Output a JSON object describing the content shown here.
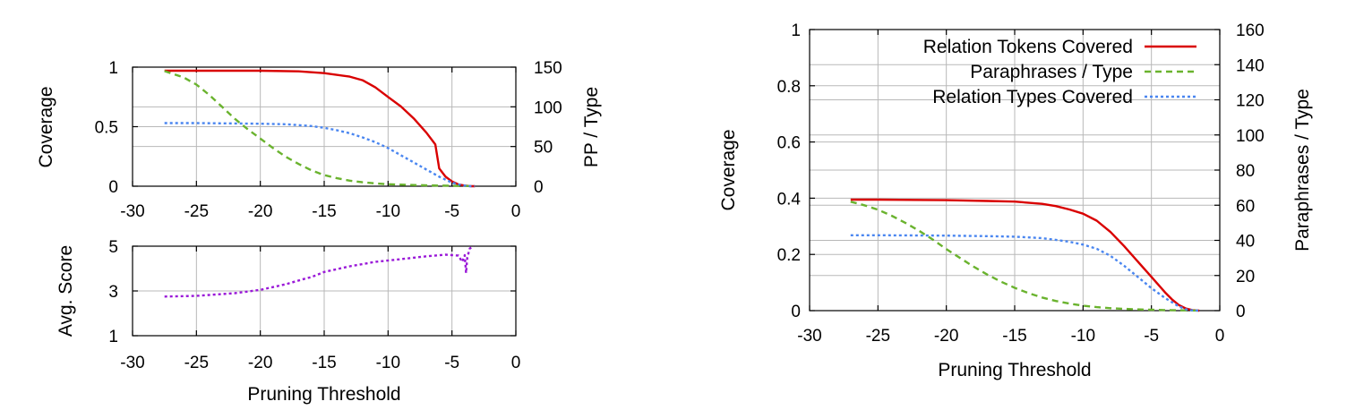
{
  "chart_data": [
    {
      "id": "coverage-top",
      "type": "line",
      "title": "",
      "xlabel": "",
      "ylabel": "Coverage",
      "y2label": "PP / Type",
      "xlim": [
        -30,
        0
      ],
      "ylim": [
        0,
        1
      ],
      "y2lim": [
        0,
        150
      ],
      "xticks": [
        -30,
        -25,
        -20,
        -15,
        -10,
        -5,
        0
      ],
      "xtick_labels": [
        "-30",
        "-25",
        "-20",
        "-15",
        "-10",
        "-5",
        "0"
      ],
      "yticks": [
        0,
        0.5,
        1
      ],
      "ytick_labels": [
        "0",
        "0.5",
        "1"
      ],
      "y2ticks": [
        0,
        50,
        100,
        150
      ],
      "y2tick_labels": [
        "0",
        "50",
        "100",
        "150"
      ],
      "grid": true,
      "series": [
        {
          "color": "#d90000",
          "dash": "solid",
          "axis": "y",
          "x": [
            -27.5,
            -25,
            -20,
            -17,
            -15,
            -13,
            -12,
            -11,
            -10,
            -9,
            -8,
            -7,
            -6.3,
            -6.0,
            -5.5,
            -5,
            -4.5,
            -4,
            -3.5,
            -3.2
          ],
          "y": [
            0.97,
            0.97,
            0.97,
            0.965,
            0.95,
            0.92,
            0.89,
            0.83,
            0.75,
            0.67,
            0.57,
            0.45,
            0.35,
            0.15,
            0.08,
            0.04,
            0.015,
            0.005,
            0.0,
            0.0
          ]
        },
        {
          "color": "#6ab32e",
          "dash": "dashed",
          "axis": "y2",
          "x": [
            -27.5,
            -26,
            -25,
            -24,
            -23,
            -22,
            -21,
            -20,
            -19,
            -18,
            -17,
            -16,
            -15,
            -14,
            -13,
            -12,
            -11,
            -10,
            -8,
            -6,
            -4,
            -3.2
          ],
          "y": [
            145,
            137,
            128,
            115,
            100,
            85,
            72,
            60,
            48,
            37,
            28,
            20,
            14,
            10,
            7,
            5,
            3.5,
            2.5,
            1.5,
            0.8,
            0.3,
            0.0
          ]
        },
        {
          "color": "#4a86f0",
          "dash": "dotted",
          "axis": "y",
          "x": [
            -27.5,
            -25,
            -20,
            -18,
            -16,
            -15,
            -14,
            -13,
            -12,
            -11,
            -10,
            -9,
            -8,
            -7,
            -6,
            -5,
            -4.5,
            -4,
            -3.5,
            -3.2
          ],
          "y": [
            0.53,
            0.53,
            0.525,
            0.52,
            0.505,
            0.49,
            0.47,
            0.445,
            0.41,
            0.37,
            0.32,
            0.26,
            0.2,
            0.14,
            0.08,
            0.03,
            0.015,
            0.005,
            0.0,
            0.0
          ]
        }
      ]
    },
    {
      "id": "score-bottom",
      "type": "line",
      "title": "",
      "xlabel": "Pruning Threshold",
      "ylabel": "Avg. Score",
      "xlim": [
        -30,
        0
      ],
      "ylim": [
        1,
        5
      ],
      "xticks": [
        -30,
        -25,
        -20,
        -15,
        -10,
        -5,
        0
      ],
      "xtick_labels": [
        "-30",
        "-25",
        "-20",
        "-15",
        "-10",
        "-5",
        "0"
      ],
      "yticks": [
        1,
        3,
        5
      ],
      "ytick_labels": [
        "1",
        "3",
        "5"
      ],
      "grid": true,
      "series": [
        {
          "color": "#9a19d8",
          "dash": "dotted",
          "x": [
            -27.5,
            -25,
            -22,
            -20,
            -18,
            -16.5,
            -16,
            -15,
            -13,
            -11,
            -9,
            -7,
            -5.5,
            -5,
            -4.5,
            -4.2,
            -4.0,
            -3.9,
            -3.8,
            -3.6,
            -3.3
          ],
          "y": [
            2.75,
            2.78,
            2.9,
            3.05,
            3.3,
            3.55,
            3.62,
            3.85,
            4.1,
            4.3,
            4.42,
            4.55,
            4.62,
            4.6,
            4.58,
            4.3,
            4.6,
            3.8,
            4.5,
            4.9,
            5.0
          ]
        }
      ]
    },
    {
      "id": "coverage-right",
      "type": "line",
      "title": "",
      "xlabel": "Pruning Threshold",
      "ylabel": "Coverage",
      "y2label": "Paraphrases / Type",
      "xlim": [
        -30,
        0
      ],
      "ylim": [
        0,
        1
      ],
      "y2lim": [
        0,
        160
      ],
      "xticks": [
        -30,
        -25,
        -20,
        -15,
        -10,
        -5,
        0
      ],
      "xtick_labels": [
        "-30",
        "-25",
        "-20",
        "-15",
        "-10",
        "-5",
        "0"
      ],
      "yticks": [
        0,
        0.2,
        0.4,
        0.6,
        0.8,
        1
      ],
      "ytick_labels": [
        "0",
        "0.2",
        "0.4",
        "0.6",
        "0.8",
        "1"
      ],
      "y2ticks": [
        0,
        20,
        40,
        60,
        80,
        100,
        120,
        140,
        160
      ],
      "y2tick_labels": [
        "0",
        "20",
        "40",
        "60",
        "80",
        "100",
        "120",
        "140",
        "160"
      ],
      "grid": true,
      "legend": "top-right",
      "series": [
        {
          "name": "Relation Tokens Covered",
          "color": "#d90000",
          "dash": "solid",
          "axis": "y",
          "x": [
            -27,
            -25,
            -20,
            -17,
            -15,
            -13,
            -12,
            -11,
            -10,
            -9,
            -8,
            -7,
            -6,
            -5,
            -4,
            -3.5,
            -3,
            -2.5,
            -2,
            -1.5
          ],
          "y": [
            0.395,
            0.395,
            0.393,
            0.39,
            0.388,
            0.38,
            0.372,
            0.36,
            0.345,
            0.32,
            0.28,
            0.23,
            0.175,
            0.12,
            0.065,
            0.04,
            0.02,
            0.008,
            0.002,
            0.0
          ]
        },
        {
          "name": "Paraphrases / Type",
          "color": "#6ab32e",
          "dash": "dashed",
          "axis": "y2",
          "x": [
            -27,
            -26,
            -25,
            -24,
            -23,
            -22,
            -21,
            -20,
            -19,
            -18,
            -17,
            -16,
            -15,
            -14,
            -13,
            -12,
            -11,
            -10,
            -9,
            -8,
            -7,
            -6,
            -5,
            -4,
            -3,
            -2,
            -1.5
          ],
          "y": [
            62,
            60,
            57.5,
            54,
            50,
            45.5,
            40.5,
            35,
            30,
            25,
            20.5,
            16.5,
            13,
            10,
            7.5,
            5.5,
            4,
            2.8,
            2,
            1.4,
            1,
            0.7,
            0.5,
            0.3,
            0.2,
            0.1,
            0.0
          ]
        },
        {
          "name": "Relation Types Covered",
          "color": "#4a86f0",
          "dash": "dotted",
          "axis": "y",
          "x": [
            -27,
            -25,
            -20,
            -17,
            -15,
            -13,
            -12,
            -11,
            -10,
            -9,
            -8,
            -7,
            -6,
            -5,
            -4,
            -3,
            -2.5,
            -2,
            -1.5
          ],
          "y": [
            0.268,
            0.268,
            0.267,
            0.265,
            0.263,
            0.258,
            0.252,
            0.245,
            0.235,
            0.22,
            0.195,
            0.16,
            0.12,
            0.08,
            0.045,
            0.015,
            0.005,
            0.001,
            0.0
          ]
        }
      ]
    }
  ]
}
